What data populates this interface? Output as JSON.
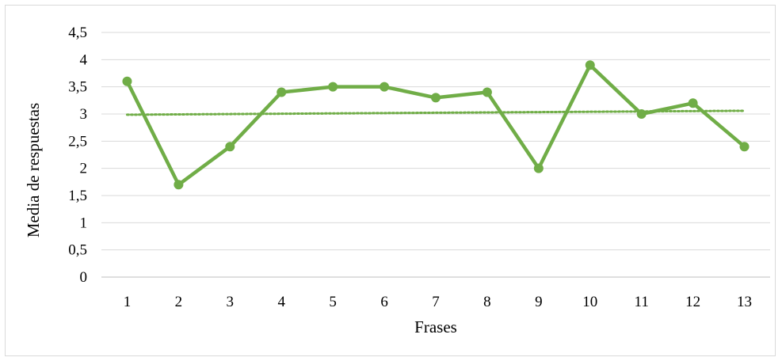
{
  "chart_data": {
    "type": "line",
    "xlabel": "Frases",
    "ylabel": "Media de respuestas",
    "categories": [
      "1",
      "2",
      "3",
      "4",
      "5",
      "6",
      "7",
      "8",
      "9",
      "10",
      "11",
      "12",
      "13"
    ],
    "series": [
      {
        "values": [
          3.6,
          1.7,
          2.4,
          3.4,
          3.5,
          3.5,
          3.3,
          3.4,
          2.0,
          3.9,
          3.0,
          3.2,
          2.4
        ],
        "color": "#70ad47"
      }
    ],
    "trendline": {
      "type": "linear",
      "style": "dotted",
      "color": "#70ad47"
    },
    "ylim": [
      0,
      4.5
    ],
    "yticks": [
      "0",
      "0,5",
      "1",
      "1,5",
      "2",
      "2,5",
      "3",
      "3,5",
      "4",
      "4,5"
    ],
    "grid": true,
    "legend": "none"
  }
}
